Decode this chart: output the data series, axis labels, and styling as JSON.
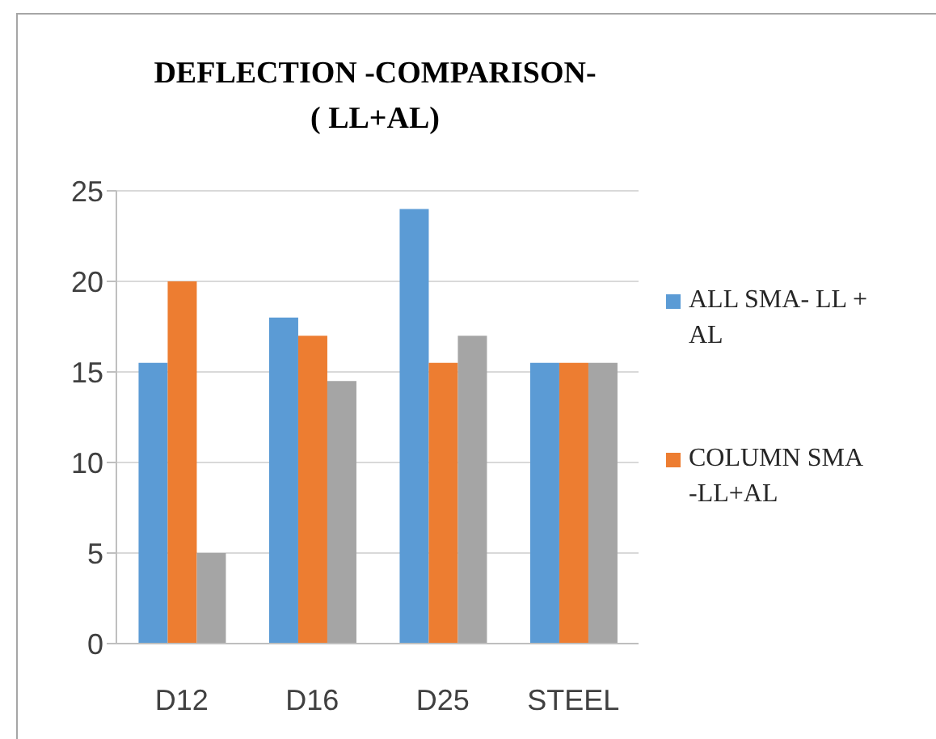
{
  "chart_data": {
    "type": "bar",
    "title": "DEFLECTION -COMPARISON- ( LL+AL)",
    "categories": [
      "D12",
      "D16",
      "D25",
      "STEEL"
    ],
    "series": [
      {
        "name": "ALL SMA- LL + AL",
        "color": "#5b9bd5",
        "values": [
          15.5,
          18,
          24,
          15.5
        ]
      },
      {
        "name": "COLUMN SMA -LL+AL",
        "color": "#ed7d31",
        "values": [
          20,
          17,
          15.5,
          15.5
        ]
      },
      {
        "color": "#a5a5a5",
        "values": [
          5,
          14.5,
          17,
          15.5
        ]
      }
    ],
    "ylim": [
      0,
      25
    ],
    "yticks": [
      0,
      5,
      10,
      15,
      20,
      25
    ],
    "grid": "y",
    "legend": "right"
  }
}
